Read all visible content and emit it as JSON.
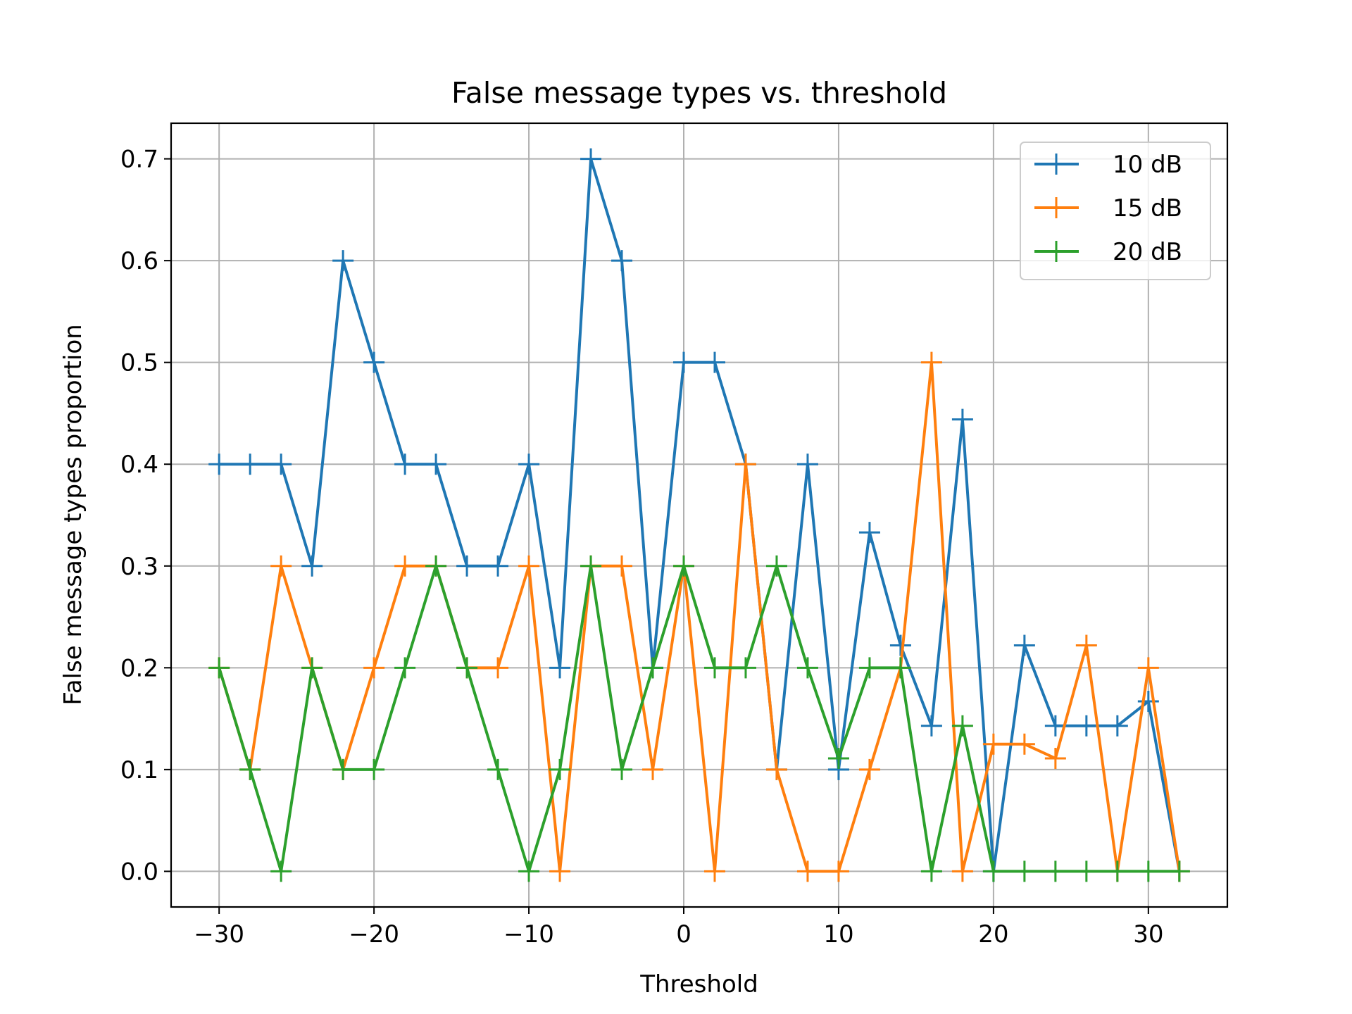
{
  "chart_data": {
    "type": "line",
    "title": "False  message types vs. threshold",
    "xlabel": "Threshold",
    "ylabel": "False message types proportion",
    "xlim": [
      -33.1,
      35.1
    ],
    "ylim": [
      -0.035,
      0.735
    ],
    "xticks": [
      -30,
      -20,
      -10,
      0,
      10,
      20,
      30
    ],
    "xtick_labels": [
      "−30",
      "−20",
      "−10",
      "0",
      "10",
      "20",
      "30"
    ],
    "yticks": [
      0.0,
      0.1,
      0.2,
      0.3,
      0.4,
      0.5,
      0.6,
      0.7
    ],
    "ytick_labels": [
      "0.0",
      "0.1",
      "0.2",
      "0.3",
      "0.4",
      "0.5",
      "0.6",
      "0.7"
    ],
    "grid": true,
    "marker": "+",
    "legend_position": "top-right",
    "x": [
      -30,
      -28,
      -26,
      -24,
      -22,
      -20,
      -18,
      -16,
      -14,
      -12,
      -10,
      -8,
      -6,
      -4,
      -2,
      0,
      2,
      4,
      6,
      8,
      10,
      12,
      14,
      16,
      18,
      20,
      22,
      24,
      26,
      28,
      30,
      32
    ],
    "series": [
      {
        "name": "10 dB",
        "color": "#1f77b4",
        "values": [
          0.4,
          0.4,
          0.4,
          0.3,
          0.6,
          0.5,
          0.4,
          0.4,
          0.3,
          0.3,
          0.4,
          0.2,
          0.7,
          0.6,
          0.2,
          0.5,
          0.5,
          0.4,
          0.1,
          0.4,
          0.1,
          0.333,
          0.222,
          0.143,
          0.444,
          0.0,
          0.222,
          0.143,
          0.143,
          0.143,
          0.167,
          0.0
        ]
      },
      {
        "name": "15 dB",
        "color": "#ff7f0e",
        "values": [
          0.2,
          0.1,
          0.3,
          0.2,
          0.1,
          0.2,
          0.3,
          0.3,
          0.2,
          0.2,
          0.3,
          0.0,
          0.3,
          0.3,
          0.1,
          0.3,
          0.0,
          0.4,
          0.1,
          0.0,
          0.0,
          0.1,
          0.2,
          0.5,
          0.0,
          0.125,
          0.125,
          0.111,
          0.222,
          0.0,
          0.2,
          0.0
        ]
      },
      {
        "name": "20 dB",
        "color": "#2ca02c",
        "values": [
          0.2,
          0.1,
          0.0,
          0.2,
          0.1,
          0.1,
          0.2,
          0.3,
          0.2,
          0.1,
          0.0,
          0.1,
          0.3,
          0.1,
          0.2,
          0.3,
          0.2,
          0.2,
          0.3,
          0.2,
          0.111,
          0.2,
          0.2,
          0.0,
          0.143,
          0.0,
          0.0,
          0.0,
          0.0,
          0.0,
          0.0,
          0.0
        ]
      }
    ]
  }
}
